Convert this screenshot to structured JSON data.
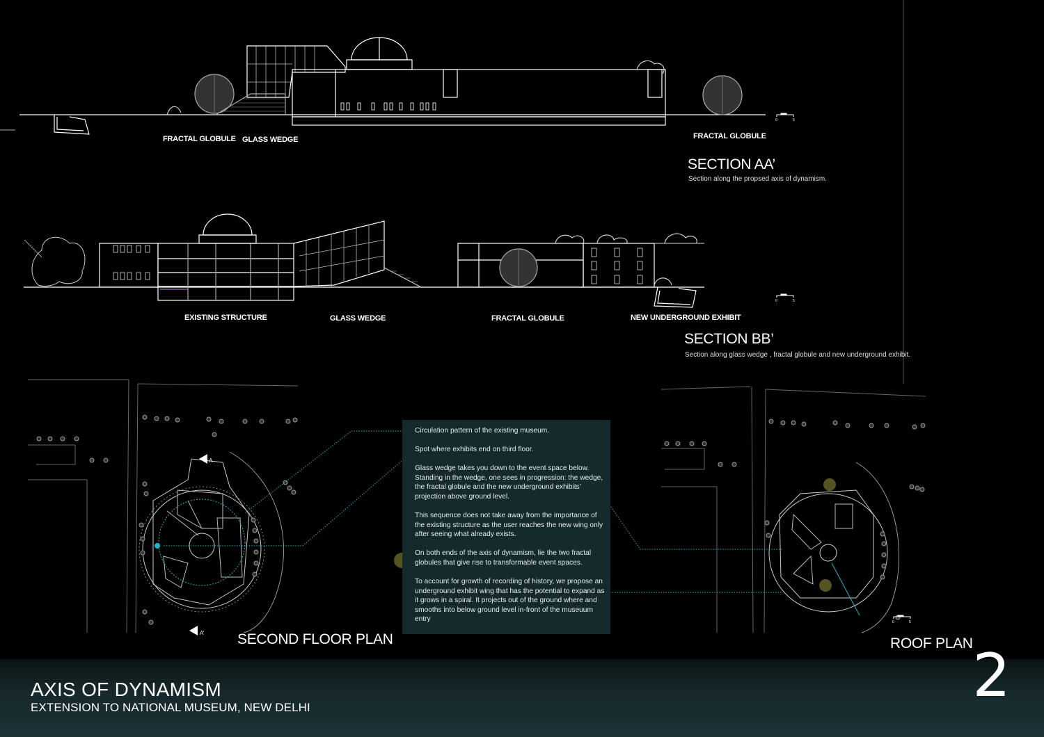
{
  "sections": {
    "aa": {
      "labels": [
        "FRACTAL GLOBULE",
        "GLASS WEDGE",
        "FRACTAL GLOBULE"
      ],
      "title": "SECTION AA’",
      "subtitle": "Section along the propsed axis of dynamism."
    },
    "bb": {
      "labels": [
        "EXISTING STRUCTURE",
        "GLASS WEDGE",
        "FRACTAL GLOBULE",
        "NEW UNDERGROUND EXHIBIT"
      ],
      "title": "SECTION BB’",
      "subtitle": "Section along glass wedge , fractal globule and new underground exhibit."
    }
  },
  "scale_bar": {
    "start": "0",
    "end": "5"
  },
  "plans": {
    "second_floor": {
      "title": "SECOND FLOOR PLAN",
      "marker_a": "A",
      "marker_a_prime": "A’"
    },
    "roof": {
      "title": "ROOF PLAN"
    }
  },
  "notes": [
    "Circulation  pattern of the existing museum.",
    "Spot where exhibits end on third floor.",
    "Glass wedge takes you down to the event space below. Standing in the wedge, one sees in progression: the wedge, the fractal globule and the new underground exhibits’ projection above ground level.",
    "This sequence does not take away from the importance of the existing structure as the user reaches the new wing only after seeing what already exists.",
    "On both ends of the axis of dynamism, lie the two fractal globules that give rise to transformable event spaces.",
    "To account for growth of recording of history, we propose an underground exhibit wing that has the potential to expand as it grows in a spiral. It projects out of the ground where  and smooths into below ground level in-front of the museuum entry"
  ],
  "footer": {
    "title": "AXIS OF DYNAMISM",
    "subtitle": "EXTENSION TO NATIONAL MUSEUM, NEW DELHI",
    "page_number": "2"
  },
  "colors": {
    "background": "#000000",
    "line": "#ffffff",
    "note_box": "#142a2d",
    "highlight_cyan": "#1fb3c8",
    "highlight_olive": "#8a8a3a",
    "footer": "#1c3235"
  }
}
